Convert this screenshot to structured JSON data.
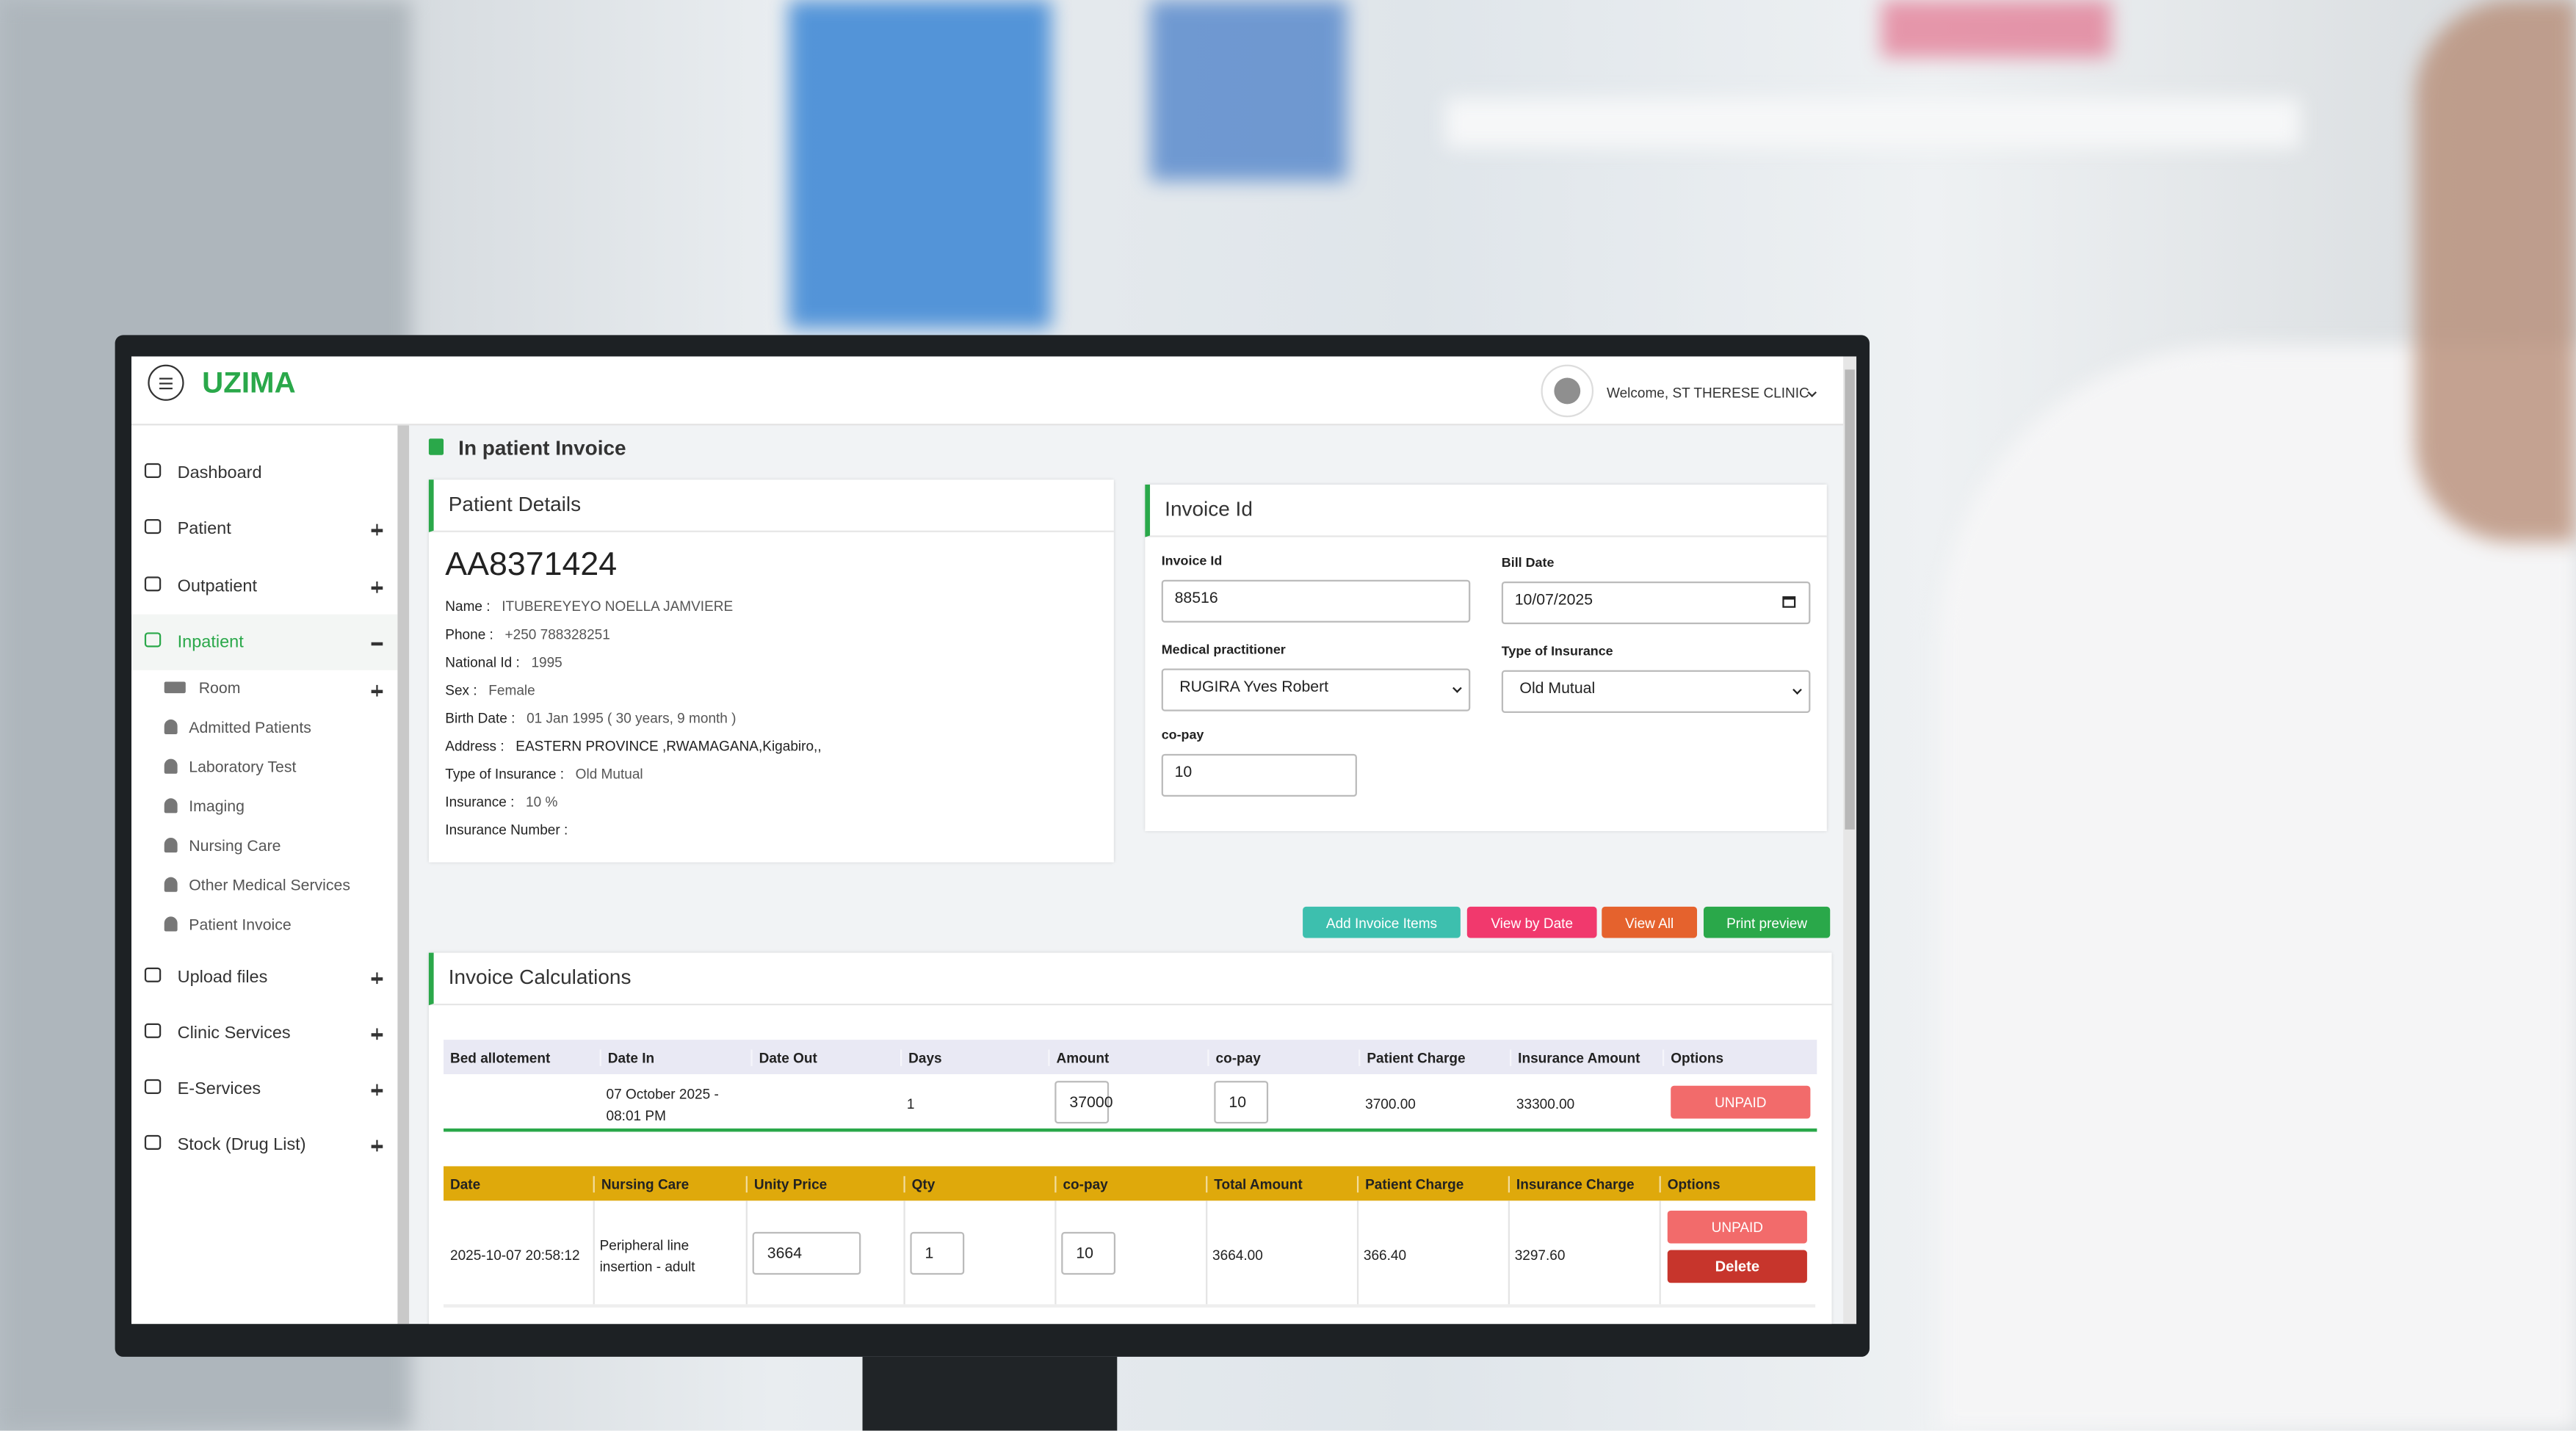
{
  "header": {
    "logo": "UZIMA",
    "welcome": "Welcome, ST THERESE CLINIC"
  },
  "sidebar": [
    {
      "label": "Dashboard"
    },
    {
      "label": "Patient",
      "expand": "+"
    },
    {
      "label": "Outpatient",
      "expand": "+"
    },
    {
      "label": "Inpatient",
      "expand": "-",
      "active": true,
      "children": [
        {
          "label": "Room",
          "expand": "+",
          "icon": "bed"
        },
        {
          "label": "Admitted Patients"
        },
        {
          "label": "Laboratory Test"
        },
        {
          "label": "Imaging"
        },
        {
          "label": "Nursing Care"
        },
        {
          "label": "Other Medical Services"
        },
        {
          "label": "Patient Invoice"
        }
      ]
    },
    {
      "label": "Upload files",
      "expand": "+"
    },
    {
      "label": "Clinic Services",
      "expand": "+"
    },
    {
      "label": "E-Services",
      "expand": "+"
    },
    {
      "label": "Stock (Drug List)",
      "expand": "+"
    }
  ],
  "page_title": "In patient Invoice",
  "patient": {
    "title": "Patient Details",
    "code": "AA8371424",
    "fields": [
      {
        "label": "Name :",
        "value": "ITUBEREYEYO NOELLA JAMVIERE"
      },
      {
        "label": "Phone :",
        "value": "+250 788328251"
      },
      {
        "label": "National Id :",
        "value": "1995"
      },
      {
        "label": "Sex :",
        "value": "Female"
      },
      {
        "label": "Birth Date :",
        "value": "01 Jan 1995 ( 30 years, 9 month )"
      },
      {
        "label": "Address :",
        "value": "EASTERN PROVINCE ,RWAMAGANA,Kigabiro,,",
        "dark": true
      },
      {
        "label": "Type of Insurance :",
        "value": "Old Mutual"
      },
      {
        "label": "Insurance :",
        "value": "10 %"
      },
      {
        "label": "Insurance Number :"
      }
    ]
  },
  "invoice": {
    "title": "Invoice Id",
    "fields": [
      {
        "label": "Invoice Id",
        "value": "88516",
        "kind": "text"
      },
      {
        "label": "Bill Date",
        "value": "10/07/2025",
        "kind": "date"
      },
      {
        "label": "Medical practitioner",
        "value": "RUGIRA Yves Robert",
        "kind": "select"
      },
      {
        "label": "Type of Insurance",
        "value": "Old Mutual",
        "kind": "select"
      },
      {
        "label": "co-pay",
        "value": "10",
        "kind": "text"
      }
    ]
  },
  "buttons": [
    {
      "label": "Add Invoice Items",
      "color": "#3dbfae"
    },
    {
      "label": "View by Date",
      "color": "#f1396d"
    },
    {
      "label": "View All",
      "color": "#e5622d"
    },
    {
      "label": "Print preview",
      "color": "#2aa84a"
    }
  ],
  "calc": {
    "title": "Invoice Calculations",
    "bed_table": {
      "headers": [
        "Bed allotement",
        "Date In",
        "Date Out",
        "Days",
        "Amount",
        "co-pay",
        "Patient Charge",
        "Insurance Amount",
        "Options"
      ],
      "rows": [
        {
          "cells": [
            null,
            "07 October 2025 - 08:01 PM",
            null,
            "1",
            "37000",
            "10",
            "3700.00",
            "33300.00"
          ],
          "inputs": [
            4,
            5
          ],
          "status": "UNPAID"
        }
      ]
    },
    "nursing_table": {
      "headers": [
        "Date",
        "Nursing Care",
        "Unity Price",
        "Qty",
        "co-pay",
        "Total Amount",
        "Patient Charge",
        "Insurance Charge",
        "Options"
      ],
      "rows": [
        {
          "cells": [
            "2025-10-07 20:58:12",
            "Peripheral line insertion - adult",
            "3664",
            "1",
            "10",
            "3664.00",
            "366.40",
            "3297.60"
          ],
          "inputs": [
            2,
            3,
            4
          ],
          "status": "UNPAID",
          "delete": "Delete"
        }
      ]
    }
  }
}
